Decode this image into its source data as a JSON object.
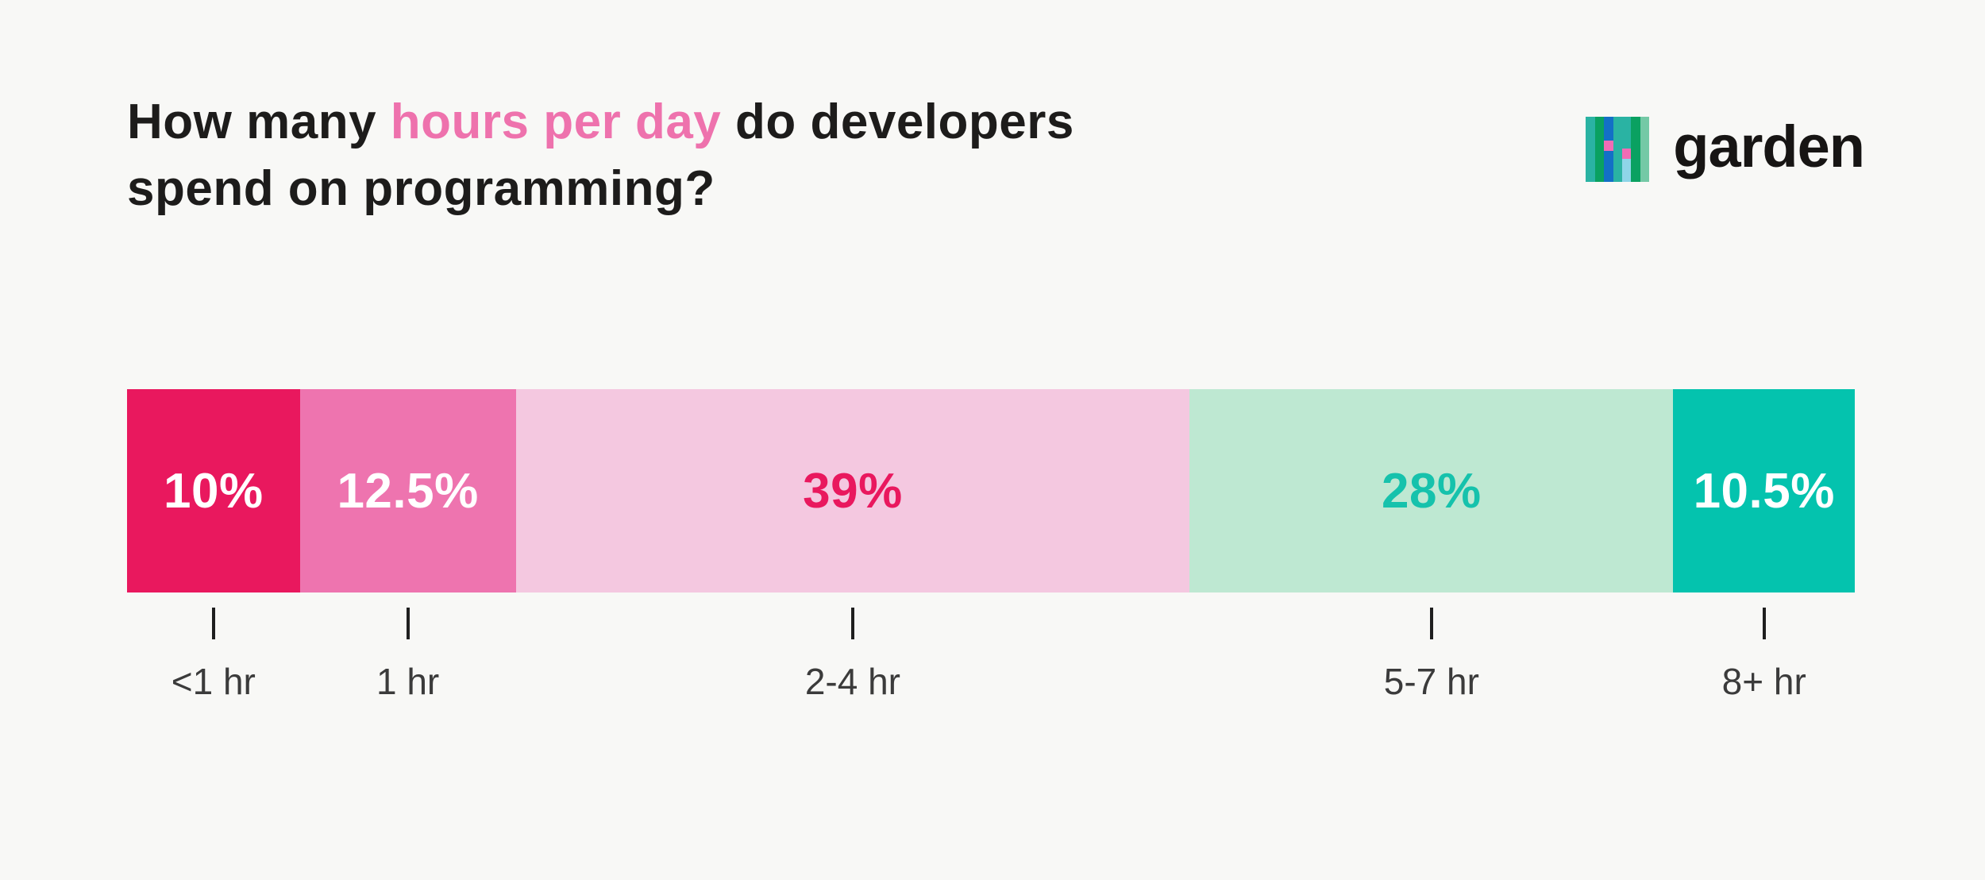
{
  "page": {
    "background": "#f8f8f6"
  },
  "header": {
    "title_prefix": "How many ",
    "title_highlight": "hours per day",
    "title_suffix": " do developers spend on programming?",
    "title_color": "#1d1c1b",
    "title_highlight_color": "#ee72ad"
  },
  "brand": {
    "name": "garden",
    "name_color": "#171514",
    "icon": {
      "stripe_colors": [
        "#2ab3a3",
        "#0aa161",
        "#1370c6",
        "#2ab3a3",
        "#2ab3a3",
        "#0aa161",
        "#74c9a6"
      ],
      "pink_accent": "#f16cb5",
      "light_blue_accent": "#8ed5e8"
    }
  },
  "chart_data": {
    "type": "bar",
    "variant": "horizontal-stacked-100-percent",
    "title": "How many hours per day do developers spend on programming?",
    "categories": [
      "<1 hr",
      "1 hr",
      "2-4 hr",
      "5-7 hr",
      "8+ hr"
    ],
    "values": [
      10,
      12.5,
      39,
      28,
      10.5
    ],
    "value_labels": [
      "10%",
      "12.5%",
      "39%",
      "28%",
      "10.5%"
    ],
    "segments": [
      {
        "category": "<1 hr",
        "value": 10,
        "value_label": "10%",
        "color": "#e9185e",
        "value_label_color": "#ffffff"
      },
      {
        "category": "1 hr",
        "value": 12.5,
        "value_label": "12.5%",
        "color": "#ee74af",
        "value_label_color": "#ffffff"
      },
      {
        "category": "2-4 hr",
        "value": 39,
        "value_label": "39%",
        "color": "#f4c8e0",
        "value_label_color": "#e9185e"
      },
      {
        "category": "5-7 hr",
        "value": 28,
        "value_label": "28%",
        "color": "#bee8d2",
        "value_label_color": "#16c2ac"
      },
      {
        "category": "8+ hr",
        "value": 10.5,
        "value_label": "10.5%",
        "color": "#04c3ae",
        "value_label_color": "#ffffff"
      }
    ],
    "axis": {
      "tick_color": "#1f1f1f",
      "label_color": "#3b3b3b"
    },
    "legend": "none",
    "grid": false
  }
}
